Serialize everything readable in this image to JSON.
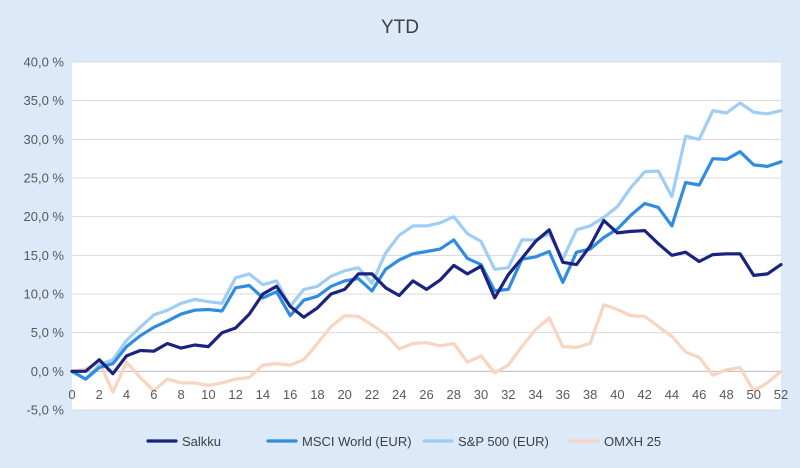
{
  "chart_data": {
    "type": "line",
    "title": "YTD",
    "xlabel": "",
    "ylabel": "",
    "ylim": [
      -5,
      40
    ],
    "xlim": [
      0,
      52
    ],
    "y_ticks": [
      "-5,0 %",
      "0,0 %",
      "5,0 %",
      "10,0 %",
      "15,0 %",
      "20,0 %",
      "25,0 %",
      "30,0 %",
      "35,0 %",
      "40,0 %"
    ],
    "x_ticks": [
      "0",
      "2",
      "4",
      "6",
      "8",
      "10",
      "12",
      "14",
      "16",
      "18",
      "20",
      "22",
      "24",
      "26",
      "28",
      "30",
      "32",
      "34",
      "36",
      "38",
      "40",
      "42",
      "44",
      "46",
      "48",
      "50",
      "52"
    ],
    "grid": "horizontal",
    "legend_position": "bottom",
    "x": [
      0,
      1,
      2,
      3,
      4,
      5,
      6,
      7,
      8,
      9,
      10,
      11,
      12,
      13,
      14,
      15,
      16,
      17,
      18,
      19,
      20,
      21,
      22,
      23,
      24,
      25,
      26,
      27,
      28,
      29,
      30,
      31,
      32,
      33,
      34,
      35,
      36,
      37,
      38,
      39,
      40,
      41,
      42,
      43,
      44,
      45,
      46,
      47,
      48,
      49,
      50,
      51,
      52
    ],
    "series": [
      {
        "name": "Salkku",
        "color": "#1a237e",
        "values": [
          0,
          0,
          1.5,
          -0.3,
          2,
          2.7,
          2.6,
          3.6,
          3,
          3.4,
          3.2,
          5,
          5.6,
          7.4,
          10,
          11,
          8.4,
          7,
          8.2,
          10,
          10.6,
          12.6,
          12.6,
          10.8,
          9.8,
          11.7,
          10.6,
          11.8,
          13.7,
          12.6,
          13.6,
          9.5,
          12.5,
          14.6,
          16.8,
          18.3,
          14.1,
          13.8,
          16.2,
          19.5,
          17.9,
          18.1,
          18.2,
          16.5,
          15,
          15.4,
          14.2,
          15.1,
          15.2,
          15.2,
          12.4,
          12.6,
          13.8
        ]
      },
      {
        "name": "MSCI World (EUR)",
        "color": "#2f8ce0",
        "values": [
          0,
          -1,
          0.5,
          1,
          3.2,
          4.6,
          5.7,
          6.5,
          7.4,
          7.9,
          8,
          7.8,
          10.8,
          11.1,
          9.5,
          10.3,
          7.2,
          9.2,
          9.7,
          11,
          11.7,
          12,
          10.4,
          13.2,
          14.4,
          15.2,
          15.5,
          15.8,
          17,
          14.6,
          13.8,
          10.4,
          10.6,
          14.5,
          14.8,
          15.5,
          11.5,
          15.4,
          15.8,
          17.3,
          18.4,
          20.2,
          21.7,
          21.2,
          18.8,
          24.4,
          24.1,
          27.5,
          27.4,
          28.4,
          26.7,
          26.5,
          27.1
        ]
      },
      {
        "name": "S&P 500 (EUR)",
        "color": "#9fcdf5",
        "values": [
          0,
          -1,
          0.8,
          1.5,
          4,
          5.7,
          7.3,
          7.9,
          8.8,
          9.3,
          9,
          8.8,
          12.1,
          12.6,
          11.2,
          11.7,
          8.4,
          10.6,
          11,
          12.3,
          13,
          13.4,
          11.4,
          15.3,
          17.6,
          18.8,
          18.8,
          19.2,
          20,
          17.8,
          16.8,
          13.2,
          13.4,
          17,
          17,
          17.8,
          14.5,
          18.3,
          18.8,
          19.9,
          21.3,
          23.8,
          25.8,
          25.9,
          22.6,
          30.4,
          30,
          33.7,
          33.4,
          34.7,
          33.5,
          33.3,
          33.7
        ]
      },
      {
        "name": "OMXH 25",
        "color": "#f9d4c0",
        "values": [
          0,
          0.3,
          1.2,
          -2.7,
          1.2,
          -0.8,
          -2.5,
          -1,
          -1.5,
          -1.5,
          -1.8,
          -1.5,
          -1,
          -0.8,
          0.8,
          1,
          0.8,
          1.5,
          3.6,
          5.8,
          7.2,
          7.1,
          6,
          4.8,
          2.9,
          3.6,
          3.7,
          3.3,
          3.6,
          1.2,
          2,
          -0.2,
          0.8,
          3.2,
          5.4,
          6.9,
          3.2,
          3.1,
          3.6,
          8.6,
          8,
          7.2,
          7.1,
          5.8,
          4.5,
          2.5,
          1.8,
          -0.5,
          0.2,
          0.5,
          -2.5,
          -1.5,
          0
        ]
      }
    ]
  }
}
